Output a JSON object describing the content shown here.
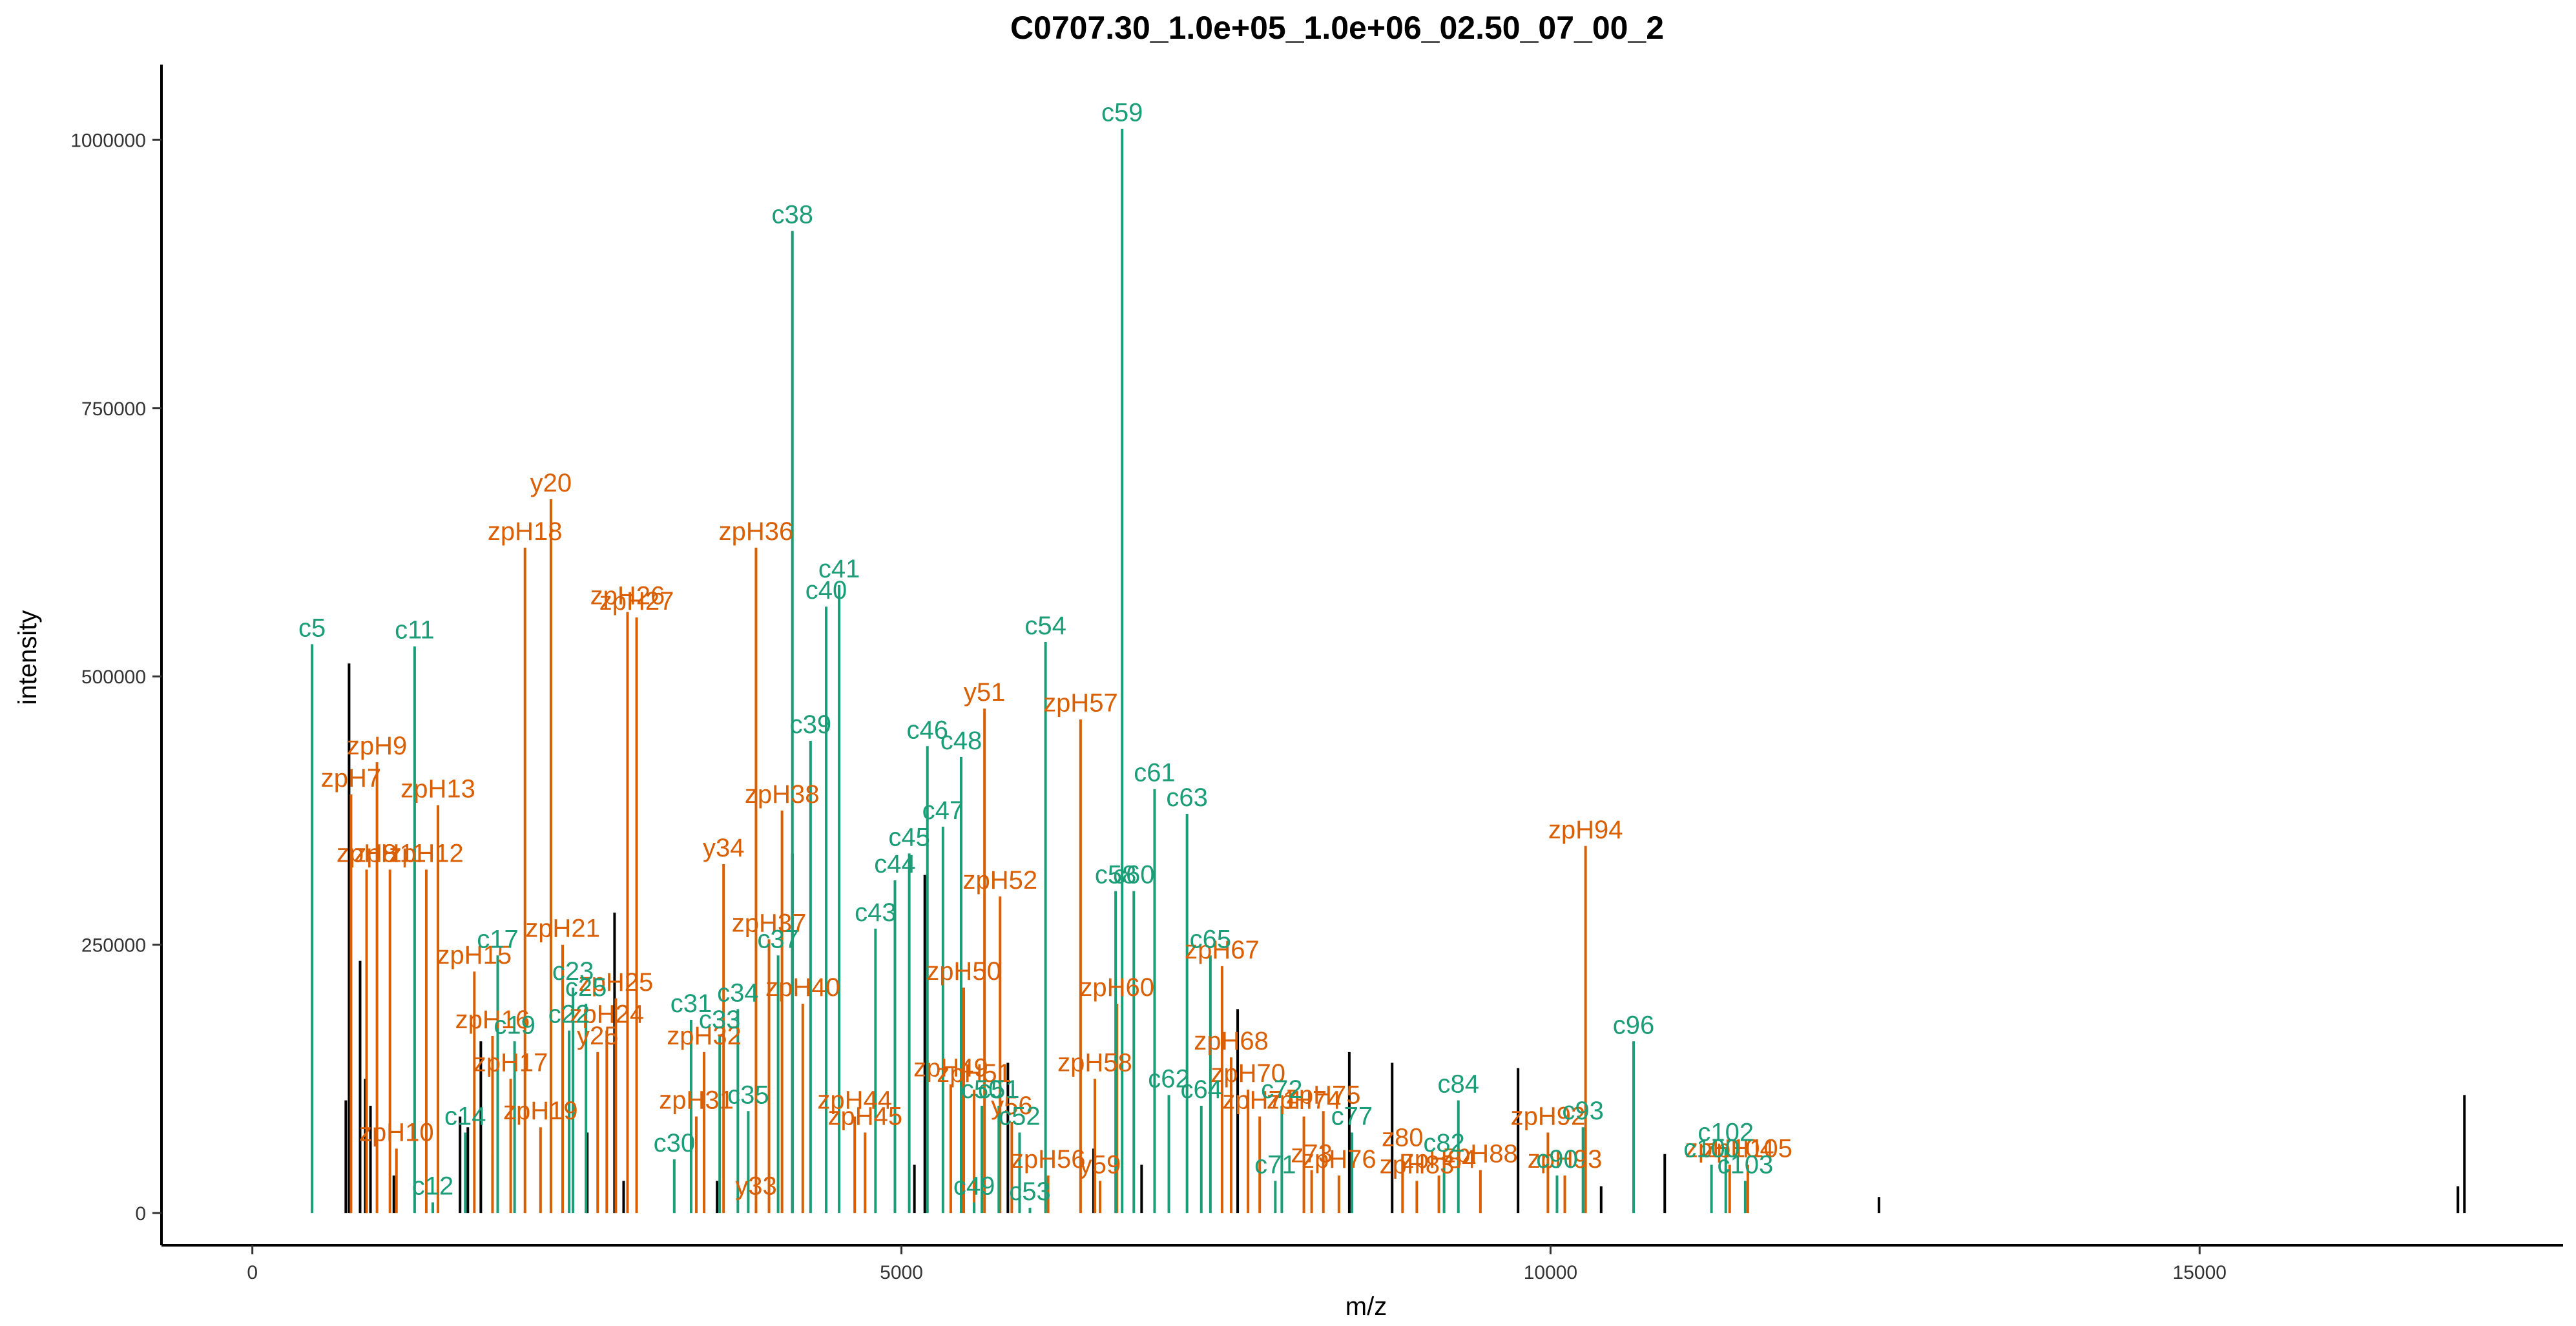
{
  "chart_data": {
    "type": "bar",
    "title": "C0707.30_1.0e+05_1.0e+06_02.50_07_00_2",
    "xlabel": "m/z",
    "ylabel": "intensity",
    "xlim": [
      -700,
      17800
    ],
    "ylim": [
      -30000,
      1070000
    ],
    "x_ticks": [
      0,
      5000,
      10000,
      15000
    ],
    "x_tick_labels": [
      "0",
      "5000",
      "10000",
      "15000"
    ],
    "y_ticks": [
      0,
      250000,
      500000,
      750000,
      1000000
    ],
    "y_tick_labels": [
      "0",
      "250000",
      "500000",
      "750000",
      "1000000"
    ],
    "grid": false,
    "legend": "none",
    "colors": {
      "c": "#1b9e77",
      "z": "#d95f02",
      "unassigned": "#000000"
    },
    "series": [
      {
        "ion_type": "c",
        "peaks": [
          {
            "label": "c5",
            "mz": 460,
            "intensity": 530000
          },
          {
            "label": "c11",
            "mz": 1250,
            "intensity": 528000
          },
          {
            "label": "c12",
            "mz": 1390,
            "intensity": 10000
          },
          {
            "label": "c14",
            "mz": 1640,
            "intensity": 75000
          },
          {
            "label": "c17",
            "mz": 1890,
            "intensity": 240000
          },
          {
            "label": "c19",
            "mz": 2020,
            "intensity": 160000
          },
          {
            "label": "c22",
            "mz": 2440,
            "intensity": 170000
          },
          {
            "label": "c23",
            "mz": 2470,
            "intensity": 210000
          },
          {
            "label": "c25",
            "mz": 2570,
            "intensity": 195000
          },
          {
            "label": "c30",
            "mz": 3250,
            "intensity": 50000
          },
          {
            "label": "c31",
            "mz": 3380,
            "intensity": 180000
          },
          {
            "label": "c33",
            "mz": 3600,
            "intensity": 165000
          },
          {
            "label": "c34",
            "mz": 3740,
            "intensity": 190000
          },
          {
            "label": "c35",
            "mz": 3820,
            "intensity": 95000
          },
          {
            "label": "c37",
            "mz": 4050,
            "intensity": 240000
          },
          {
            "label": "c38",
            "mz": 4160,
            "intensity": 915000
          },
          {
            "label": "c39",
            "mz": 4300,
            "intensity": 440000
          },
          {
            "label": "c40",
            "mz": 4420,
            "intensity": 565000
          },
          {
            "label": "c41",
            "mz": 4520,
            "intensity": 585000
          },
          {
            "label": "c43",
            "mz": 4800,
            "intensity": 265000
          },
          {
            "label": "c44",
            "mz": 4950,
            "intensity": 310000
          },
          {
            "label": "c45",
            "mz": 5060,
            "intensity": 335000
          },
          {
            "label": "c46",
            "mz": 5200,
            "intensity": 435000
          },
          {
            "label": "c47",
            "mz": 5320,
            "intensity": 360000
          },
          {
            "label": "c48",
            "mz": 5460,
            "intensity": 425000
          },
          {
            "label": "c49",
            "mz": 5560,
            "intensity": 10000
          },
          {
            "label": "c50",
            "mz": 5620,
            "intensity": 100000
          },
          {
            "label": "c51",
            "mz": 5750,
            "intensity": 100000
          },
          {
            "label": "c52",
            "mz": 5910,
            "intensity": 75000
          },
          {
            "label": "c53",
            "mz": 5990,
            "intensity": 5000
          },
          {
            "label": "c54",
            "mz": 6110,
            "intensity": 532000
          },
          {
            "label": "c58",
            "mz": 6650,
            "intensity": 300000
          },
          {
            "label": "c59",
            "mz": 6700,
            "intensity": 1010000
          },
          {
            "label": "c60",
            "mz": 6790,
            "intensity": 300000
          },
          {
            "label": "c61",
            "mz": 6950,
            "intensity": 395000
          },
          {
            "label": "c62",
            "mz": 7060,
            "intensity": 110000
          },
          {
            "label": "c63",
            "mz": 7200,
            "intensity": 372000
          },
          {
            "label": "c64",
            "mz": 7310,
            "intensity": 100000
          },
          {
            "label": "c65",
            "mz": 7380,
            "intensity": 240000
          },
          {
            "label": "c71",
            "mz": 7880,
            "intensity": 30000
          },
          {
            "label": "c72",
            "mz": 7930,
            "intensity": 100000
          },
          {
            "label": "c77",
            "mz": 8470,
            "intensity": 75000
          },
          {
            "label": "c82",
            "mz": 9180,
            "intensity": 50000
          },
          {
            "label": "c84",
            "mz": 9290,
            "intensity": 105000
          },
          {
            "label": "c90",
            "mz": 10050,
            "intensity": 35000
          },
          {
            "label": "c93",
            "mz": 10250,
            "intensity": 80000
          },
          {
            "label": "c96",
            "mz": 10640,
            "intensity": 160000
          },
          {
            "label": "c100",
            "mz": 11240,
            "intensity": 45000
          },
          {
            "label": "c102",
            "mz": 11350,
            "intensity": 60000
          },
          {
            "label": "c103",
            "mz": 11500,
            "intensity": 30000
          }
        ]
      },
      {
        "ion_type": "z",
        "peaks": [
          {
            "label": "zpH7",
            "mz": 760,
            "intensity": 390000
          },
          {
            "label": "zpH8",
            "mz": 880,
            "intensity": 320000
          },
          {
            "label": "zpH9",
            "mz": 960,
            "intensity": 420000
          },
          {
            "label": "zpH10",
            "mz": 1110,
            "intensity": 60000
          },
          {
            "label": "zpH11",
            "mz": 1060,
            "intensity": 320000
          },
          {
            "label": "zpH12",
            "mz": 1340,
            "intensity": 320000
          },
          {
            "label": "zpH13",
            "mz": 1430,
            "intensity": 380000
          },
          {
            "label": "zpH15",
            "mz": 1710,
            "intensity": 225000
          },
          {
            "label": "zpH16",
            "mz": 1850,
            "intensity": 165000
          },
          {
            "label": "zpH17",
            "mz": 1990,
            "intensity": 125000
          },
          {
            "label": "zpH18",
            "mz": 2100,
            "intensity": 620000
          },
          {
            "label": "zpH19",
            "mz": 2220,
            "intensity": 80000
          },
          {
            "label": "y20",
            "mz": 2300,
            "intensity": 665000
          },
          {
            "label": "zpH21",
            "mz": 2390,
            "intensity": 250000
          },
          {
            "label": "zpH24",
            "mz": 2730,
            "intensity": 170000
          },
          {
            "label": "zpH25",
            "mz": 2800,
            "intensity": 200000
          },
          {
            "label": "y25",
            "mz": 2660,
            "intensity": 150000
          },
          {
            "label": "zpH26",
            "mz": 2890,
            "intensity": 560000
          },
          {
            "label": "zpH27",
            "mz": 2960,
            "intensity": 555000
          },
          {
            "label": "zpH31",
            "mz": 3420,
            "intensity": 90000
          },
          {
            "label": "zpH32",
            "mz": 3480,
            "intensity": 150000
          },
          {
            "label": "y33",
            "mz": 3880,
            "intensity": 10000
          },
          {
            "label": "y34",
            "mz": 3630,
            "intensity": 325000
          },
          {
            "label": "zpH36",
            "mz": 3880,
            "intensity": 620000
          },
          {
            "label": "zpH37",
            "mz": 3980,
            "intensity": 255000
          },
          {
            "label": "zpH38",
            "mz": 4080,
            "intensity": 375000
          },
          {
            "label": "zpH40",
            "mz": 4240,
            "intensity": 195000
          },
          {
            "label": "zpH44",
            "mz": 4640,
            "intensity": 90000
          },
          {
            "label": "zpH45",
            "mz": 4720,
            "intensity": 75000
          },
          {
            "label": "zpH49",
            "mz": 5380,
            "intensity": 120000
          },
          {
            "label": "zpH50",
            "mz": 5480,
            "intensity": 210000
          },
          {
            "label": "zpH51",
            "mz": 5560,
            "intensity": 115000
          },
          {
            "label": "y51",
            "mz": 5640,
            "intensity": 470000
          },
          {
            "label": "zpH52",
            "mz": 5760,
            "intensity": 295000
          },
          {
            "label": "y56",
            "mz": 5850,
            "intensity": 85000
          },
          {
            "label": "zpH56",
            "mz": 6130,
            "intensity": 35000
          },
          {
            "label": "zpH57",
            "mz": 6380,
            "intensity": 460000
          },
          {
            "label": "zpH58",
            "mz": 6490,
            "intensity": 125000
          },
          {
            "label": "y59",
            "mz": 6530,
            "intensity": 30000
          },
          {
            "label": "zpH60",
            "mz": 6660,
            "intensity": 195000
          },
          {
            "label": "zpH67",
            "mz": 7470,
            "intensity": 230000
          },
          {
            "label": "zpH68",
            "mz": 7540,
            "intensity": 145000
          },
          {
            "label": "zpH70",
            "mz": 7670,
            "intensity": 115000
          },
          {
            "label": "zpH71",
            "mz": 7760,
            "intensity": 90000
          },
          {
            "label": "zpH74",
            "mz": 8100,
            "intensity": 90000
          },
          {
            "label": "zpH75",
            "mz": 8250,
            "intensity": 95000
          },
          {
            "label": "z73",
            "mz": 8160,
            "intensity": 40000
          },
          {
            "label": "zpH76",
            "mz": 8370,
            "intensity": 35000
          },
          {
            "label": "z80",
            "mz": 8860,
            "intensity": 55000
          },
          {
            "label": "zpH83",
            "mz": 8970,
            "intensity": 30000
          },
          {
            "label": "zpH84",
            "mz": 9140,
            "intensity": 35000
          },
          {
            "label": "zpH88",
            "mz": 9460,
            "intensity": 40000
          },
          {
            "label": "zpH92",
            "mz": 9980,
            "intensity": 75000
          },
          {
            "label": "zpH93",
            "mz": 10110,
            "intensity": 35000
          },
          {
            "label": "zpH94",
            "mz": 10270,
            "intensity": 342000
          },
          {
            "label": "zpH104",
            "mz": 11380,
            "intensity": 45000
          },
          {
            "label": "zpH105",
            "mz": 11520,
            "intensity": 45000
          }
        ]
      },
      {
        "ion_type": "unassigned",
        "peaks": [
          {
            "mz": 720,
            "intensity": 105000
          },
          {
            "mz": 745,
            "intensity": 512000
          },
          {
            "mz": 830,
            "intensity": 235000
          },
          {
            "mz": 870,
            "intensity": 125000
          },
          {
            "mz": 910,
            "intensity": 100000
          },
          {
            "mz": 1090,
            "intensity": 35000
          },
          {
            "mz": 1600,
            "intensity": 90000
          },
          {
            "mz": 1660,
            "intensity": 80000
          },
          {
            "mz": 1760,
            "intensity": 160000
          },
          {
            "mz": 1850,
            "intensity": 55000
          },
          {
            "mz": 2580,
            "intensity": 75000
          },
          {
            "mz": 2790,
            "intensity": 280000
          },
          {
            "mz": 2860,
            "intensity": 30000
          },
          {
            "mz": 3580,
            "intensity": 30000
          },
          {
            "mz": 4160,
            "intensity": 335000
          },
          {
            "mz": 5100,
            "intensity": 45000
          },
          {
            "mz": 5180,
            "intensity": 315000
          },
          {
            "mz": 5820,
            "intensity": 140000
          },
          {
            "mz": 6480,
            "intensity": 60000
          },
          {
            "mz": 6850,
            "intensity": 45000
          },
          {
            "mz": 7590,
            "intensity": 190000
          },
          {
            "mz": 8450,
            "intensity": 150000
          },
          {
            "mz": 8780,
            "intensity": 140000
          },
          {
            "mz": 9750,
            "intensity": 135000
          },
          {
            "mz": 10390,
            "intensity": 25000
          },
          {
            "mz": 10880,
            "intensity": 55000
          },
          {
            "mz": 12530,
            "intensity": 15000
          },
          {
            "mz": 16990,
            "intensity": 25000
          },
          {
            "mz": 17040,
            "intensity": 110000
          }
        ]
      }
    ]
  }
}
